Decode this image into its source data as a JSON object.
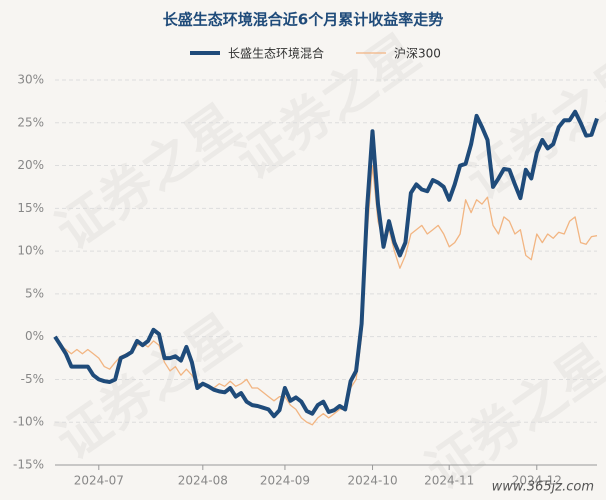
{
  "chart_data": {
    "type": "line",
    "title": "长盛生态环境混合近6个月累计收益率走势",
    "watermark": "证券之星",
    "source_mark": "www.365jz.com",
    "categories": [
      null,
      null,
      null,
      null,
      null,
      null,
      null,
      null,
      "2024-07",
      null,
      null,
      null,
      null,
      null,
      null,
      null,
      null,
      null,
      null,
      null,
      null,
      null,
      null,
      null,
      null,
      null,
      null,
      "2024-08",
      null,
      null,
      null,
      null,
      null,
      null,
      null,
      null,
      null,
      null,
      null,
      null,
      null,
      null,
      "2024-09",
      null,
      null,
      null,
      null,
      null,
      null,
      null,
      null,
      null,
      null,
      null,
      null,
      null,
      null,
      null,
      "2024-10",
      null,
      null,
      null,
      null,
      null,
      null,
      null,
      null,
      null,
      null,
      null,
      null,
      null,
      "2024-11",
      null,
      null,
      null,
      null,
      null,
      null,
      null,
      null,
      null,
      null,
      null,
      null,
      null,
      null,
      null,
      "2024-12",
      null,
      null,
      null,
      null,
      null,
      null,
      null,
      null,
      null,
      null,
      null
    ],
    "series": [
      {
        "name": "长盛生态环境混合",
        "color": "#1f4b7a",
        "width": 4,
        "values": [
          0,
          -1,
          -2,
          -3.5,
          -3.5,
          -3.5,
          -3.5,
          -4.5,
          -5,
          -5.2,
          -5.3,
          -5,
          -2.5,
          -2.2,
          -1.8,
          -0.5,
          -1,
          -0.5,
          0.8,
          0.3,
          -2.5,
          -2.5,
          -2.3,
          -2.8,
          -1.2,
          -3,
          -6,
          -5.5,
          -5.8,
          -6.2,
          -6.4,
          -6.5,
          -6,
          -7,
          -6.6,
          -7.6,
          -8,
          -8.1,
          -8.3,
          -8.5,
          -9.3,
          -8.6,
          -6,
          -7.5,
          -7.1,
          -7.6,
          -8.7,
          -9,
          -8,
          -7.6,
          -8.8,
          -8.6,
          -8.1,
          -8.5,
          -5.2,
          -4,
          1.5,
          15,
          24,
          15.5,
          10.5,
          13.5,
          11,
          9.5,
          11,
          16.8,
          17.8,
          17.2,
          17,
          18.3,
          18,
          17.5,
          16,
          17.8,
          20,
          20.2,
          22.5,
          25.8,
          24.5,
          23,
          17.5,
          18.5,
          19.6,
          19.5,
          17.8,
          16.2,
          19.5,
          18.5,
          21.5,
          23,
          22,
          22.5,
          24.5,
          25.3,
          25.3,
          26.3,
          25,
          23.5,
          23.6,
          25.5
        ]
      },
      {
        "name": "沪深300",
        "color": "#f2b582",
        "width": 1.3,
        "values": [
          0,
          -1,
          -1.5,
          -2,
          -1.5,
          -2,
          -1.5,
          -2,
          -2.5,
          -3.5,
          -3.8,
          -3,
          -2.3,
          -2,
          -2,
          -1,
          -0.8,
          -1.2,
          -0.5,
          -1,
          -3,
          -4,
          -3.5,
          -4.5,
          -3.8,
          -4.5,
          -5.5,
          -5.5,
          -5.8,
          -6,
          -5.5,
          -5.8,
          -5.2,
          -5.8,
          -5.5,
          -5,
          -6,
          -6,
          -6.5,
          -7,
          -7.5,
          -7,
          -7,
          -8,
          -8.5,
          -9.5,
          -10,
          -10.3,
          -9.5,
          -9,
          -9.5,
          -9,
          -8.5,
          -8.5,
          -6,
          -5,
          0,
          12,
          20,
          13.5,
          11,
          12.5,
          10,
          8,
          9.5,
          12,
          12.5,
          13,
          12,
          12.5,
          13,
          12,
          10.5,
          11,
          12,
          16,
          14.5,
          16,
          15.5,
          16.3,
          13,
          12,
          14,
          13.5,
          12,
          12.5,
          9.5,
          9,
          12,
          11,
          12,
          11.5,
          12.2,
          12,
          13.5,
          14,
          11,
          10.8,
          11.7,
          11.8
        ]
      }
    ],
    "ylim": [
      -15,
      30
    ],
    "yticks": [
      {
        "value": -15,
        "label": "-15%"
      },
      {
        "value": -10,
        "label": "-10%"
      },
      {
        "value": -5,
        "label": "-5%"
      },
      {
        "value": 0,
        "label": "0%"
      },
      {
        "value": 5,
        "label": "5%"
      },
      {
        "value": 10,
        "label": "10%"
      },
      {
        "value": 15,
        "label": "15%"
      },
      {
        "value": 20,
        "label": "20%"
      },
      {
        "value": 25,
        "label": "25%"
      },
      {
        "value": 30,
        "label": "30%"
      }
    ],
    "grid": true
  }
}
